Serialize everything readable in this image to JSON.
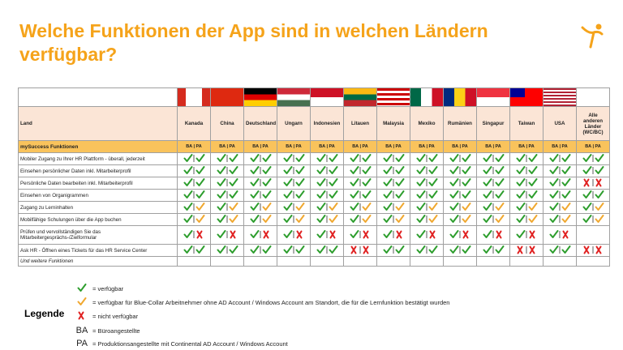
{
  "header": {
    "title": "Welche Funktionen der App sind in welchen Ländern verfügbar?"
  },
  "table": {
    "corner": "Land",
    "section": "mySuccess Funktionen",
    "columns": [
      "Kanada",
      "China",
      "Deutschland",
      "Ungarn",
      "Indonesien",
      "Litauen",
      "Malaysia",
      "Mexiko",
      "Rumänien",
      "Singapur",
      "Taiwan",
      "USA",
      "Alle anderen Länder (WC/BC)"
    ],
    "subheader": [
      "BA | PA",
      "BA | PA",
      "BA | PA",
      "BA | PA",
      "BA | PA",
      "BA | PA",
      "BA | PA",
      "BA | PA",
      "BA | PA",
      "BA | PA",
      "BA | PA",
      "BA | PA",
      "BA | PA"
    ],
    "rows": [
      {
        "label": "Mobiler Zugang zu Ihrer HR Plattform - überall, jederzeit",
        "cells": [
          [
            "v",
            "v"
          ],
          [
            "v",
            "v"
          ],
          [
            "v",
            "v"
          ],
          [
            "v",
            "v"
          ],
          [
            "v",
            "v"
          ],
          [
            "v",
            "v"
          ],
          [
            "v",
            "v"
          ],
          [
            "v",
            "v"
          ],
          [
            "v",
            "v"
          ],
          [
            "v",
            "v"
          ],
          [
            "v",
            "v"
          ],
          [
            "v",
            "v"
          ],
          [
            "v",
            "v"
          ]
        ]
      },
      {
        "label": "Einsehen persönlicher Daten inkl. Mitarbeiterprofil",
        "cells": [
          [
            "v",
            "v"
          ],
          [
            "v",
            "v"
          ],
          [
            "v",
            "v"
          ],
          [
            "v",
            "v"
          ],
          [
            "v",
            "v"
          ],
          [
            "v",
            "v"
          ],
          [
            "v",
            "v"
          ],
          [
            "v",
            "v"
          ],
          [
            "v",
            "v"
          ],
          [
            "v",
            "v"
          ],
          [
            "v",
            "v"
          ],
          [
            "v",
            "v"
          ],
          [
            "v",
            "v"
          ]
        ]
      },
      {
        "label": "Persönliche Daten bearbeiten inkl. Mitarbeiterprofil",
        "cells": [
          [
            "v",
            "v"
          ],
          [
            "v",
            "v"
          ],
          [
            "v",
            "v"
          ],
          [
            "v",
            "v"
          ],
          [
            "v",
            "v"
          ],
          [
            "v",
            "v"
          ],
          [
            "v",
            "v"
          ],
          [
            "v",
            "v"
          ],
          [
            "v",
            "v"
          ],
          [
            "v",
            "v"
          ],
          [
            "v",
            "v"
          ],
          [
            "v",
            "v"
          ],
          [
            "x",
            "x"
          ]
        ]
      },
      {
        "label": "Einsehen von Organigrammen",
        "cells": [
          [
            "v",
            "v"
          ],
          [
            "v",
            "v"
          ],
          [
            "v",
            "v"
          ],
          [
            "v",
            "v"
          ],
          [
            "v",
            "v"
          ],
          [
            "v",
            "v"
          ],
          [
            "v",
            "v"
          ],
          [
            "v",
            "v"
          ],
          [
            "v",
            "v"
          ],
          [
            "v",
            "v"
          ],
          [
            "v",
            "v"
          ],
          [
            "v",
            "v"
          ],
          [
            "v",
            "v"
          ]
        ]
      },
      {
        "label": "Zugang zu Lerninhalten",
        "cells": [
          [
            "v",
            "o"
          ],
          [
            "v",
            "o"
          ],
          [
            "v",
            "o"
          ],
          [
            "v",
            "o"
          ],
          [
            "v",
            "o"
          ],
          [
            "v",
            "o"
          ],
          [
            "v",
            "o"
          ],
          [
            "v",
            "o"
          ],
          [
            "v",
            "o"
          ],
          [
            "v",
            "o"
          ],
          [
            "v",
            "o"
          ],
          [
            "v",
            "o"
          ],
          [
            "v",
            "o"
          ]
        ]
      },
      {
        "label": "Mobilfähige Schulungen über die App buchen",
        "cells": [
          [
            "v",
            "o"
          ],
          [
            "v",
            "o"
          ],
          [
            "v",
            "o"
          ],
          [
            "v",
            "o"
          ],
          [
            "v",
            "o"
          ],
          [
            "v",
            "o"
          ],
          [
            "v",
            "o"
          ],
          [
            "v",
            "o"
          ],
          [
            "v",
            "o"
          ],
          [
            "v",
            "o"
          ],
          [
            "v",
            "o"
          ],
          [
            "v",
            "o"
          ],
          [
            "v",
            "o"
          ]
        ]
      },
      {
        "label": "Prüfen und vervollständigen Sie das Mitarbeitergesprächs-/Zielformular",
        "cells": [
          [
            "v",
            "x"
          ],
          [
            "v",
            "x"
          ],
          [
            "v",
            "x"
          ],
          [
            "v",
            "x"
          ],
          [
            "v",
            "x"
          ],
          [
            "v",
            "x"
          ],
          [
            "v",
            "x"
          ],
          [
            "v",
            "x"
          ],
          [
            "v",
            "x"
          ],
          [
            "v",
            "x"
          ],
          [
            "v",
            "x"
          ],
          [
            "v",
            "x"
          ],
          null
        ]
      },
      {
        "label": "Ask HR - Öffnen eines Tickets für das HR Service Center",
        "cells": [
          [
            "v",
            "v"
          ],
          [
            "v",
            "v"
          ],
          [
            "v",
            "v"
          ],
          [
            "v",
            "v"
          ],
          [
            "v",
            "v"
          ],
          [
            "x",
            "x"
          ],
          [
            "v",
            "v"
          ],
          [
            "v",
            "v"
          ],
          [
            "v",
            "v"
          ],
          [
            "v",
            "v"
          ],
          [
            "x",
            "x"
          ],
          [
            "v",
            "v"
          ],
          [
            "x",
            "x"
          ]
        ]
      },
      {
        "label": "Und weitere Funktionen",
        "cells": [
          null,
          null,
          null,
          null,
          null,
          null,
          null,
          null,
          null,
          null,
          null,
          null,
          null
        ]
      }
    ]
  },
  "legend": {
    "title": "Legende",
    "items": [
      {
        "symbol": "v",
        "text": "= verfügbar"
      },
      {
        "symbol": "o",
        "text": "= verfügbar für Blue-Collar Arbeitnehmer ohne AD Account / Windows Account am Standort, die für die Lernfunktion bestätigt wurden"
      },
      {
        "symbol": "x",
        "text": "= nicht verfügbar"
      },
      {
        "label": "BA",
        "text": "= Büroangestellte"
      },
      {
        "label": "PA",
        "text": "= Produktionsangestellte mit Continental AD Account / Windows Account"
      }
    ]
  }
}
